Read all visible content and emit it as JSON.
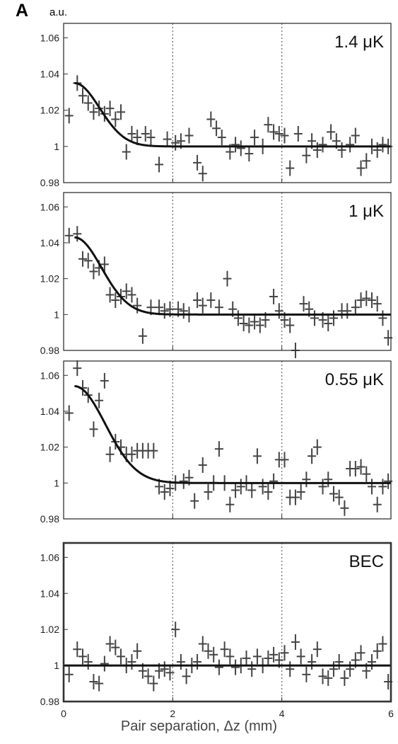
{
  "figure": {
    "panel_label": "A",
    "unit_label": "a.u.",
    "x_title": "Pair separation, Δz (mm)"
  },
  "chart_data": [
    {
      "type": "scatter",
      "panel_label": "1.4 μK",
      "x_ticks": [],
      "y_ticks": [
        "0.98",
        "1",
        "1.02",
        "1.04",
        "1.06"
      ],
      "xlim": [
        0,
        6
      ],
      "ylim": [
        0.98,
        1.068
      ],
      "reference_lines_x": [
        2,
        4
      ],
      "points": [
        [
          0.1,
          1.017
        ],
        [
          0.25,
          1.035
        ],
        [
          0.35,
          1.028
        ],
        [
          0.45,
          1.024
        ],
        [
          0.55,
          1.019
        ],
        [
          0.65,
          1.021
        ],
        [
          0.75,
          1.018
        ],
        [
          0.85,
          1.021
        ],
        [
          0.95,
          1.015
        ],
        [
          1.05,
          1.019
        ],
        [
          1.15,
          0.997
        ],
        [
          1.25,
          1.007
        ],
        [
          1.35,
          1.005
        ],
        [
          1.5,
          1.007
        ],
        [
          1.6,
          1.005
        ],
        [
          1.75,
          0.99
        ],
        [
          1.9,
          1.004
        ],
        [
          2.05,
          1.002
        ],
        [
          2.15,
          1.003
        ],
        [
          2.3,
          1.006
        ],
        [
          2.45,
          0.991
        ],
        [
          2.55,
          0.985
        ],
        [
          2.7,
          1.015
        ],
        [
          2.8,
          1.01
        ],
        [
          2.9,
          1.005
        ],
        [
          3.05,
          0.997
        ],
        [
          3.15,
          1.001
        ],
        [
          3.25,
          0.999
        ],
        [
          3.4,
          0.996
        ],
        [
          3.5,
          1.005
        ],
        [
          3.65,
          1.0
        ],
        [
          3.75,
          1.012
        ],
        [
          3.85,
          1.008
        ],
        [
          3.95,
          1.007
        ],
        [
          4.05,
          1.006
        ],
        [
          4.15,
          0.988
        ],
        [
          4.3,
          1.007
        ],
        [
          4.45,
          0.995
        ],
        [
          4.55,
          1.003
        ],
        [
          4.65,
          0.998
        ],
        [
          4.75,
          1.001
        ],
        [
          4.9,
          1.008
        ],
        [
          5.0,
          1.003
        ],
        [
          5.1,
          0.998
        ],
        [
          5.25,
          1.001
        ],
        [
          5.35,
          1.006
        ],
        [
          5.45,
          0.988
        ],
        [
          5.55,
          0.992
        ],
        [
          5.65,
          1.0
        ],
        [
          5.75,
          0.998
        ],
        [
          5.85,
          1.001
        ],
        [
          5.95,
          1.0
        ]
      ],
      "fit": {
        "x0": 0.2,
        "base": 1.0,
        "amplitude": 0.035,
        "width": 0.65
      }
    },
    {
      "type": "scatter",
      "panel_label": "1 μK",
      "x_ticks": [],
      "y_ticks": [
        "0.98",
        "1",
        "1.02",
        "1.04",
        "1.06"
      ],
      "xlim": [
        0,
        6
      ],
      "ylim": [
        0.98,
        1.068
      ],
      "reference_lines_x": [
        2,
        4
      ],
      "points": [
        [
          0.1,
          1.044
        ],
        [
          0.25,
          1.045
        ],
        [
          0.35,
          1.031
        ],
        [
          0.45,
          1.03
        ],
        [
          0.55,
          1.024
        ],
        [
          0.65,
          1.026
        ],
        [
          0.75,
          1.028
        ],
        [
          0.85,
          1.011
        ],
        [
          0.95,
          1.008
        ],
        [
          1.05,
          1.01
        ],
        [
          1.15,
          1.013
        ],
        [
          1.25,
          1.011
        ],
        [
          1.35,
          1.005
        ],
        [
          1.45,
          0.988
        ],
        [
          1.6,
          1.004
        ],
        [
          1.75,
          1.004
        ],
        [
          1.85,
          1.002
        ],
        [
          1.95,
          1.003
        ],
        [
          2.1,
          1.003
        ],
        [
          2.2,
          1.002
        ],
        [
          2.3,
          1.0
        ],
        [
          2.45,
          1.008
        ],
        [
          2.55,
          1.005
        ],
        [
          2.7,
          1.008
        ],
        [
          2.85,
          1.004
        ],
        [
          3.0,
          1.02
        ],
        [
          3.1,
          1.003
        ],
        [
          3.2,
          0.998
        ],
        [
          3.3,
          0.995
        ],
        [
          3.4,
          0.994
        ],
        [
          3.5,
          0.996
        ],
        [
          3.6,
          0.994
        ],
        [
          3.7,
          0.997
        ],
        [
          3.85,
          1.01
        ],
        [
          3.95,
          1.002
        ],
        [
          4.05,
          0.997
        ],
        [
          4.15,
          0.994
        ],
        [
          4.25,
          0.98
        ],
        [
          4.4,
          1.006
        ],
        [
          4.5,
          1.003
        ],
        [
          4.6,
          0.998
        ],
        [
          4.75,
          0.997
        ],
        [
          4.85,
          0.995
        ],
        [
          4.95,
          0.998
        ],
        [
          5.1,
          1.002
        ],
        [
          5.2,
          1.002
        ],
        [
          5.35,
          1.004
        ],
        [
          5.45,
          1.008
        ],
        [
          5.55,
          1.009
        ],
        [
          5.65,
          1.008
        ],
        [
          5.75,
          1.006
        ],
        [
          5.85,
          0.998
        ],
        [
          5.95,
          0.987
        ]
      ],
      "fit": {
        "x0": 0.2,
        "base": 1.0,
        "amplitude": 0.043,
        "width": 0.7
      }
    },
    {
      "type": "scatter",
      "panel_label": "0.55 μK",
      "x_ticks": [],
      "y_ticks": [
        "0.98",
        "1",
        "1.02",
        "1.04",
        "1.06"
      ],
      "xlim": [
        0,
        6
      ],
      "ylim": [
        0.98,
        1.068
      ],
      "reference_lines_x": [
        2,
        4
      ],
      "points": [
        [
          0.1,
          1.039
        ],
        [
          0.25,
          1.064
        ],
        [
          0.35,
          1.053
        ],
        [
          0.45,
          1.049
        ],
        [
          0.55,
          1.03
        ],
        [
          0.65,
          1.046
        ],
        [
          0.75,
          1.057
        ],
        [
          0.85,
          1.016
        ],
        [
          0.95,
          1.023
        ],
        [
          1.05,
          1.02
        ],
        [
          1.15,
          1.016
        ],
        [
          1.25,
          1.016
        ],
        [
          1.35,
          1.018
        ],
        [
          1.45,
          1.018
        ],
        [
          1.55,
          1.018
        ],
        [
          1.65,
          1.018
        ],
        [
          1.75,
          0.998
        ],
        [
          1.85,
          0.995
        ],
        [
          1.95,
          0.997
        ],
        [
          2.05,
          1.0
        ],
        [
          2.2,
          1.001
        ],
        [
          2.3,
          1.003
        ],
        [
          2.4,
          0.99
        ],
        [
          2.55,
          1.01
        ],
        [
          2.65,
          0.995
        ],
        [
          2.75,
          1.0
        ],
        [
          2.85,
          1.019
        ],
        [
          2.95,
          1.0
        ],
        [
          3.05,
          0.988
        ],
        [
          3.15,
          0.996
        ],
        [
          3.25,
          0.998
        ],
        [
          3.35,
          1.0
        ],
        [
          3.45,
          0.996
        ],
        [
          3.55,
          1.015
        ],
        [
          3.65,
          0.998
        ],
        [
          3.75,
          0.995
        ],
        [
          3.85,
          1.001
        ],
        [
          3.95,
          1.013
        ],
        [
          4.05,
          1.013
        ],
        [
          4.15,
          0.992
        ],
        [
          4.25,
          0.992
        ],
        [
          4.35,
          0.995
        ],
        [
          4.45,
          1.002
        ],
        [
          4.55,
          1.015
        ],
        [
          4.65,
          1.02
        ],
        [
          4.75,
          0.998
        ],
        [
          4.85,
          1.002
        ],
        [
          4.95,
          0.994
        ],
        [
          5.05,
          0.992
        ],
        [
          5.15,
          0.986
        ],
        [
          5.25,
          1.008
        ],
        [
          5.35,
          1.008
        ],
        [
          5.45,
          1.009
        ],
        [
          5.55,
          1.005
        ],
        [
          5.65,
          0.998
        ],
        [
          5.75,
          0.988
        ],
        [
          5.85,
          0.998
        ],
        [
          5.95,
          1.001
        ]
      ],
      "fit": {
        "x0": 0.2,
        "base": 1.0,
        "amplitude": 0.054,
        "width": 0.8
      }
    },
    {
      "type": "scatter",
      "panel_label": "BEC",
      "x_ticks": [
        "0",
        "2",
        "4",
        "6"
      ],
      "y_ticks": [
        "0.98",
        "1",
        "1.02",
        "1.04",
        "1.06"
      ],
      "xlim": [
        0,
        6
      ],
      "ylim": [
        0.98,
        1.068
      ],
      "reference_lines_x": [
        2,
        4
      ],
      "points": [
        [
          0.1,
          0.995
        ],
        [
          0.25,
          1.009
        ],
        [
          0.35,
          1.005
        ],
        [
          0.45,
          1.002
        ],
        [
          0.55,
          0.991
        ],
        [
          0.65,
          0.99
        ],
        [
          0.75,
          1.001
        ],
        [
          0.85,
          1.012
        ],
        [
          0.95,
          1.01
        ],
        [
          1.05,
          1.005
        ],
        [
          1.15,
          1.0
        ],
        [
          1.25,
          1.002
        ],
        [
          1.35,
          1.008
        ],
        [
          1.45,
          0.997
        ],
        [
          1.55,
          0.994
        ],
        [
          1.65,
          0.99
        ],
        [
          1.75,
          0.997
        ],
        [
          1.85,
          0.998
        ],
        [
          1.95,
          0.996
        ],
        [
          2.05,
          1.02
        ],
        [
          2.15,
          1.002
        ],
        [
          2.25,
          0.994
        ],
        [
          2.35,
          1.0
        ],
        [
          2.45,
          1.002
        ],
        [
          2.55,
          1.012
        ],
        [
          2.65,
          1.008
        ],
        [
          2.75,
          1.006
        ],
        [
          2.85,
          0.999
        ],
        [
          2.95,
          1.009
        ],
        [
          3.05,
          1.005
        ],
        [
          3.15,
          0.999
        ],
        [
          3.25,
          1.0
        ],
        [
          3.35,
          1.004
        ],
        [
          3.45,
          0.998
        ],
        [
          3.55,
          1.005
        ],
        [
          3.65,
          1.0
        ],
        [
          3.75,
          1.004
        ],
        [
          3.85,
          1.006
        ],
        [
          3.95,
          1.003
        ],
        [
          4.05,
          1.007
        ],
        [
          4.15,
          0.998
        ],
        [
          4.25,
          1.013
        ],
        [
          4.35,
          1.005
        ],
        [
          4.45,
          0.995
        ],
        [
          4.55,
          1.002
        ],
        [
          4.65,
          1.009
        ],
        [
          4.75,
          0.994
        ],
        [
          4.85,
          0.993
        ],
        [
          4.95,
          0.998
        ],
        [
          5.05,
          1.002
        ],
        [
          5.15,
          0.993
        ],
        [
          5.25,
          0.998
        ],
        [
          5.35,
          1.003
        ],
        [
          5.45,
          1.007
        ],
        [
          5.55,
          0.997
        ],
        [
          5.65,
          1.002
        ],
        [
          5.75,
          1.008
        ],
        [
          5.85,
          1.012
        ],
        [
          5.95,
          0.991
        ]
      ],
      "fit": {
        "x0": 0.0,
        "base": 1.0,
        "amplitude": 0.0,
        "width": 1.0
      }
    }
  ]
}
